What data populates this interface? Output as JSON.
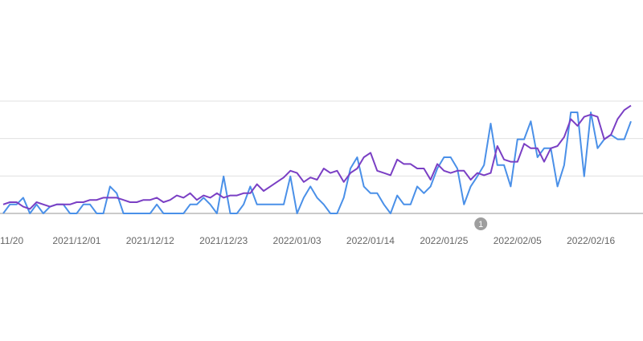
{
  "chart_data": {
    "type": "line",
    "x_tick_labels": [
      "11/20",
      "2021/12/01",
      "2021/12/12",
      "2021/12/23",
      "2022/01/03",
      "2022/01/14",
      "2022/01/25",
      "2022/02/05",
      "2022/02/16"
    ],
    "x_tick_index": [
      0,
      11,
      22,
      33,
      44,
      55,
      66,
      77,
      88
    ],
    "ylim": [
      0,
      100
    ],
    "gridlines": [
      0,
      33.3,
      66.7,
      100
    ],
    "grid": true,
    "annotation": {
      "label": "1",
      "x_index": 72
    },
    "colors": {
      "series_blue": "#4a90e8",
      "series_purple": "#7a3fc4",
      "grid": "#e0e0e0",
      "baseline": "#aaaaaa",
      "tick_text": "#666666",
      "badge": "#9e9e9e"
    },
    "series": [
      {
        "color": "#4a90e8",
        "values": [
          0,
          8,
          8,
          14,
          0,
          8,
          0,
          6,
          8,
          8,
          0,
          0,
          8,
          8,
          0,
          0,
          24,
          18,
          0,
          0,
          0,
          0,
          0,
          8,
          0,
          0,
          0,
          0,
          8,
          8,
          14,
          8,
          0,
          33,
          0,
          0,
          8,
          24,
          8,
          8,
          8,
          8,
          8,
          33,
          0,
          14,
          24,
          14,
          8,
          0,
          0,
          14,
          40,
          50,
          24,
          18,
          18,
          8,
          0,
          16,
          8,
          8,
          24,
          18,
          24,
          40,
          50,
          50,
          40,
          8,
          24,
          33,
          43,
          80,
          43,
          43,
          24,
          66,
          66,
          82,
          50,
          58,
          58,
          24,
          43,
          90,
          90,
          33,
          90,
          58,
          66,
          70,
          66,
          66,
          82
        ]
      },
      {
        "color": "#7a3fc4",
        "values": [
          8,
          10,
          10,
          6,
          4,
          10,
          8,
          6,
          8,
          8,
          8,
          10,
          10,
          12,
          12,
          14,
          14,
          14,
          12,
          10,
          10,
          12,
          12,
          14,
          10,
          12,
          16,
          14,
          18,
          12,
          16,
          14,
          18,
          14,
          16,
          16,
          18,
          18,
          26,
          20,
          24,
          28,
          32,
          38,
          36,
          28,
          32,
          30,
          40,
          36,
          38,
          28,
          36,
          40,
          50,
          54,
          38,
          36,
          34,
          48,
          44,
          44,
          40,
          40,
          30,
          44,
          38,
          36,
          38,
          38,
          30,
          36,
          34,
          36,
          60,
          48,
          46,
          46,
          62,
          58,
          58,
          46,
          58,
          60,
          68,
          84,
          78,
          86,
          88,
          86,
          66,
          70,
          84,
          92,
          96
        ]
      }
    ]
  }
}
